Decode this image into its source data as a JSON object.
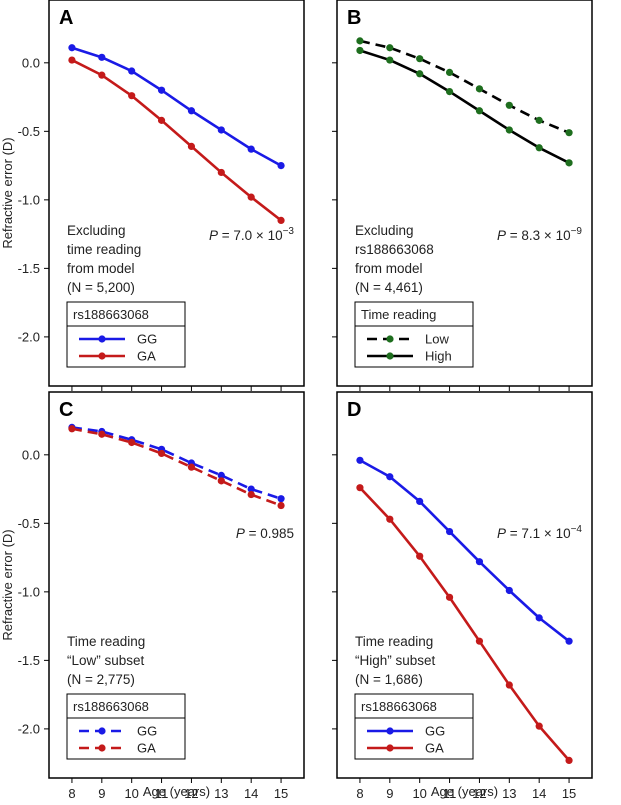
{
  "figure": {
    "xlabel": "Age (years)",
    "ylabel": "Refractive error (D)"
  },
  "chart_data": [
    {
      "panel": "A",
      "type": "line",
      "x": [
        8,
        9,
        10,
        11,
        12,
        13,
        14,
        15
      ],
      "xlim": [
        7.5,
        15.5
      ],
      "ylim": [
        -2.3,
        0.4
      ],
      "xticks": [
        "8",
        "9",
        "10",
        "11",
        "12",
        "13",
        "14",
        "15"
      ],
      "yticks": [
        "0.0",
        "-0.5",
        "-1.0",
        "-1.5",
        "-2.0"
      ],
      "ytick_values": [
        0,
        -0.5,
        -1.0,
        -1.5,
        -2.0
      ],
      "annotation_lines": [
        "Excluding",
        "time reading",
        "from model",
        "(N = 5,200)"
      ],
      "p_value": {
        "prefix": "P",
        "text": " = 7.0 × 10",
        "exponent": "−3"
      },
      "legend_title": "rs188663068",
      "series": [
        {
          "name": "GG",
          "color": "#1a1ae6",
          "dash": "solid",
          "values": [
            0.11,
            0.04,
            -0.06,
            -0.2,
            -0.35,
            -0.49,
            -0.63,
            -0.75
          ]
        },
        {
          "name": "GA",
          "color": "#c41a1a",
          "dash": "solid",
          "values": [
            0.02,
            -0.09,
            -0.24,
            -0.42,
            -0.61,
            -0.8,
            -0.98,
            -1.15
          ]
        }
      ]
    },
    {
      "panel": "B",
      "type": "line",
      "x": [
        8,
        9,
        10,
        11,
        12,
        13,
        14,
        15
      ],
      "xlim": [
        7.5,
        15.5
      ],
      "ylim": [
        -2.3,
        0.4
      ],
      "xticks": [
        "8",
        "9",
        "10",
        "11",
        "12",
        "13",
        "14",
        "15"
      ],
      "yticks": [],
      "ytick_values": [
        0,
        -0.5,
        -1.0,
        -1.5,
        -2.0
      ],
      "annotation_lines": [
        "Excluding",
        "rs188663068",
        "from model",
        "(N = 4,461)"
      ],
      "p_value": {
        "prefix": "P",
        "text": " = 8.3 × 10",
        "exponent": "−9"
      },
      "legend_title": "Time reading",
      "series": [
        {
          "name": "Low",
          "color": "#1e6e1e",
          "line_color": "#000000",
          "dash": "dashed",
          "values": [
            0.16,
            0.11,
            0.03,
            -0.07,
            -0.19,
            -0.31,
            -0.42,
            -0.51
          ]
        },
        {
          "name": "High",
          "color": "#1e6e1e",
          "line_color": "#000000",
          "dash": "solid",
          "values": [
            0.09,
            0.02,
            -0.08,
            -0.21,
            -0.35,
            -0.49,
            -0.62,
            -0.73
          ]
        }
      ]
    },
    {
      "panel": "C",
      "type": "line",
      "x": [
        8,
        9,
        10,
        11,
        12,
        13,
        14,
        15
      ],
      "xlim": [
        7.5,
        15.5
      ],
      "ylim": [
        -2.3,
        0.4
      ],
      "xticks": [
        "8",
        "9",
        "10",
        "11",
        "12",
        "13",
        "14",
        "15"
      ],
      "yticks": [
        "0.0",
        "-0.5",
        "-1.0",
        "-1.5",
        "-2.0"
      ],
      "ytick_values": [
        0,
        -0.5,
        -1.0,
        -1.5,
        -2.0
      ],
      "annotation_lines": [
        "Time reading",
        "“Low” subset",
        "(N = 2,775)"
      ],
      "p_value": {
        "prefix": "P",
        "text": " = 0.985",
        "exponent": ""
      },
      "legend_title": "rs188663068",
      "series": [
        {
          "name": "GG",
          "color": "#1a1ae6",
          "dash": "dashed",
          "values": [
            0.2,
            0.17,
            0.11,
            0.04,
            -0.06,
            -0.15,
            -0.25,
            -0.32
          ]
        },
        {
          "name": "GA",
          "color": "#c41a1a",
          "dash": "dashed",
          "values": [
            0.19,
            0.15,
            0.09,
            0.01,
            -0.09,
            -0.19,
            -0.29,
            -0.37
          ]
        }
      ]
    },
    {
      "panel": "D",
      "type": "line",
      "x": [
        8,
        9,
        10,
        11,
        12,
        13,
        14,
        15
      ],
      "xlim": [
        7.5,
        15.5
      ],
      "ylim": [
        -2.3,
        0.4
      ],
      "xticks": [
        "8",
        "9",
        "10",
        "11",
        "12",
        "13",
        "14",
        "15"
      ],
      "yticks": [],
      "ytick_values": [
        0,
        -0.5,
        -1.0,
        -1.5,
        -2.0
      ],
      "annotation_lines": [
        "Time reading",
        "“High” subset",
        "(N = 1,686)"
      ],
      "p_value": {
        "prefix": "P",
        "text": " = 7.1 × 10",
        "exponent": "−4"
      },
      "legend_title": "rs188663068",
      "series": [
        {
          "name": "GG",
          "color": "#1a1ae6",
          "dash": "solid",
          "values": [
            -0.04,
            -0.16,
            -0.34,
            -0.56,
            -0.78,
            -0.99,
            -1.19,
            -1.36
          ]
        },
        {
          "name": "GA",
          "color": "#c41a1a",
          "dash": "solid",
          "values": [
            -0.24,
            -0.47,
            -0.74,
            -1.04,
            -1.36,
            -1.68,
            -1.98,
            -2.23
          ]
        }
      ]
    }
  ]
}
